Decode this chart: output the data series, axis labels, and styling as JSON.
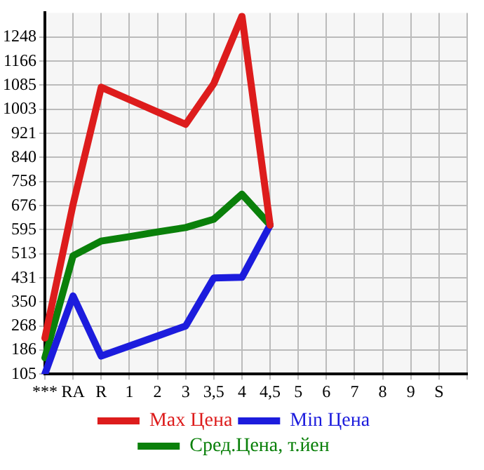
{
  "chart_data": {
    "type": "line",
    "categories": [
      "***",
      "RA",
      "R",
      "1",
      "2",
      "3",
      "3,5",
      "4",
      "4,5",
      "5",
      "6",
      "7",
      "8",
      "9",
      "S",
      null
    ],
    "series": [
      {
        "name": "Max Цена",
        "color": "#dd1c1c",
        "values": [
          227,
          680,
          1078,
          1036,
          994,
          952,
          1090,
          1319,
          610,
          null,
          null,
          null,
          null,
          null,
          null,
          null
        ]
      },
      {
        "name": "Min Цена",
        "color": "#1c1cdd",
        "values": [
          105,
          370,
          166,
          200,
          234,
          268,
          431,
          433,
          610,
          null,
          null,
          null,
          null,
          null,
          null,
          null
        ]
      },
      {
        "name": "Сред.Цена, т.йен",
        "color": "#0a800a",
        "values": [
          160,
          506,
          556,
          571,
          587,
          602,
          630,
          715,
          610,
          null,
          null,
          null,
          null,
          null,
          null,
          null
        ]
      }
    ],
    "ylim": [
      105,
      1330
    ],
    "yticks": [
      105,
      186,
      268,
      350,
      431,
      513,
      595,
      676,
      758,
      840,
      921,
      1003,
      1085,
      1166,
      1248
    ],
    "grid": true,
    "legend": "bottom",
    "marker": "none",
    "line_style": "solid"
  }
}
